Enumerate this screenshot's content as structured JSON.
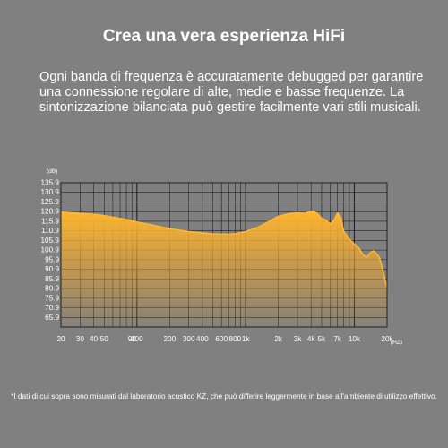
{
  "heading": "Crea una vera esperienza HiFi",
  "description": "Ogni banda di frequenza è accuratamente debugged per garantire una connessione regolare di alte, medie e basse frequenze. La sintonizzazione bilanciata può gestire facilmente vari stili musicali.",
  "footnote": "*I dati di cui sopra sono misurati dal laboratorio acustico KZ, che può differire leggermente in base all'ambiente di utilizzo effettivo.",
  "colors": {
    "background": "#808080",
    "curve_top": "#FFB52E",
    "curve_bottom": "#F5A623",
    "grid": "#222222"
  },
  "chart_data": {
    "type": "area",
    "title": "",
    "xlabel": "",
    "ylabel": "",
    "y_unit_label": "(dB)",
    "x_unit_label": "(HZ)",
    "x_scale": "log",
    "xlim": [
      20,
      20000
    ],
    "ylim": [
      60.9,
      135.9
    ],
    "grid": true,
    "y_ticks": [
      135.9,
      130.9,
      125.9,
      120.9,
      115.9,
      110.9,
      105.9,
      100.9,
      95.9,
      90.9,
      85.9,
      80.9,
      75.9,
      70.9,
      65.9
    ],
    "x_tick_labels": [
      {
        "value": 20,
        "label": "20"
      },
      {
        "value": 30,
        "label": "30"
      },
      {
        "value": 40,
        "label": "40"
      },
      {
        "value": 50,
        "label": "50"
      },
      {
        "value": 90,
        "label": "90"
      },
      {
        "value": 100,
        "label": "100"
      },
      {
        "value": 200,
        "label": "200"
      },
      {
        "value": 300,
        "label": "300"
      },
      {
        "value": 400,
        "label": "400"
      },
      {
        "value": 600,
        "label": "600"
      },
      {
        "value": 800,
        "label": "800"
      },
      {
        "value": 1000,
        "label": "1k"
      },
      {
        "value": 2000,
        "label": "2k"
      },
      {
        "value": 3000,
        "label": "3k"
      },
      {
        "value": 4000,
        "label": "4k"
      },
      {
        "value": 5000,
        "label": "5k"
      },
      {
        "value": 7000,
        "label": "7k"
      },
      {
        "value": 10000,
        "label": "10k"
      },
      {
        "value": 20000,
        "label": "20k"
      }
    ],
    "x_gridlines": [
      20,
      30,
      40,
      50,
      60,
      70,
      80,
      90,
      100,
      200,
      300,
      400,
      500,
      600,
      700,
      800,
      900,
      1000,
      2000,
      3000,
      4000,
      5000,
      6000,
      7000,
      8000,
      9000,
      10000,
      20000
    ],
    "series": [
      {
        "x": [
          20,
          25,
          30,
          40,
          50,
          60,
          80,
          100,
          150,
          200,
          300,
          400,
          500,
          600,
          700,
          800,
          1000,
          1300,
          1600,
          2000,
          2500,
          3000,
          3500,
          3800,
          4200,
          4500,
          5000,
          5500,
          6000,
          6500,
          7000,
          7500,
          8000,
          9000,
          10000,
          11000,
          12000,
          13000,
          14000,
          15000,
          16000,
          17000,
          18000,
          19000,
          20000
        ],
        "values": [
          120.7,
          120.4,
          120.0,
          119.5,
          118.8,
          118.0,
          116.8,
          115.5,
          113.5,
          112.0,
          110.5,
          109.8,
          109.3,
          109.2,
          109.2,
          109.4,
          110.5,
          112.8,
          115.5,
          118.5,
          119.8,
          120.3,
          120.0,
          120.8,
          121.0,
          120.2,
          117.5,
          116.5,
          114.5,
          116.5,
          120.2,
          118.0,
          110.5,
          106.5,
          104.0,
          102.0,
          98.5,
          97.0,
          99.5,
          100.5,
          99.0,
          97.0,
          92.0,
          86.0,
          81.5
        ]
      }
    ]
  }
}
